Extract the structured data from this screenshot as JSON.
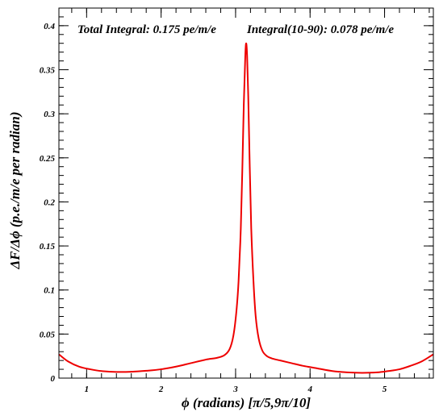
{
  "chart_data": {
    "type": "line",
    "annotations": {
      "total_integral": "Total Integral: 0.175 pe/m/e",
      "integral_range": "Integral(10-90): 0.078 pe/m/e"
    },
    "xlabel": "ϕ (radians) [π/5,9π/10]",
    "ylabel": "ΔF/Δϕ (p.e./m/e per radian)",
    "xlim": [
      0.628,
      5.655
    ],
    "ylim": [
      0,
      0.42
    ],
    "x_ticks": [
      1,
      2,
      3,
      4,
      5
    ],
    "x_tick_labels": [
      "1",
      "2",
      "3",
      "4",
      "5"
    ],
    "y_ticks": [
      0,
      0.05,
      0.1,
      0.15,
      0.2,
      0.25,
      0.3,
      0.35,
      0.4
    ],
    "y_tick_labels": [
      "0",
      "0.05",
      "0.1",
      "0.15",
      "0.2",
      "0.25",
      "0.3",
      "0.35",
      "0.4"
    ],
    "grid": false,
    "line_color": "#ee0000",
    "series": [
      {
        "x": [
          0.628,
          0.75,
          0.9,
          1.05,
          1.2,
          1.4,
          1.6,
          1.8,
          2.0,
          2.2,
          2.4,
          2.6,
          2.75,
          2.85,
          2.92,
          2.97,
          3.01,
          3.04,
          3.07,
          3.09,
          3.11,
          3.13,
          3.142,
          3.155,
          3.17,
          3.19,
          3.21,
          3.24,
          3.27,
          3.31,
          3.36,
          3.42,
          3.5,
          3.6,
          3.75,
          3.9,
          4.1,
          4.3,
          4.5,
          4.7,
          4.9,
          5.05,
          5.2,
          5.35,
          5.5,
          5.655
        ],
        "values": [
          0.027,
          0.019,
          0.013,
          0.01,
          0.008,
          0.007,
          0.0072,
          0.0083,
          0.01,
          0.013,
          0.017,
          0.021,
          0.023,
          0.026,
          0.033,
          0.048,
          0.075,
          0.11,
          0.17,
          0.235,
          0.31,
          0.365,
          0.38,
          0.365,
          0.32,
          0.24,
          0.17,
          0.11,
          0.07,
          0.045,
          0.031,
          0.025,
          0.022,
          0.02,
          0.017,
          0.014,
          0.011,
          0.008,
          0.0065,
          0.006,
          0.0065,
          0.008,
          0.01,
          0.014,
          0.019,
          0.027
        ]
      }
    ]
  }
}
